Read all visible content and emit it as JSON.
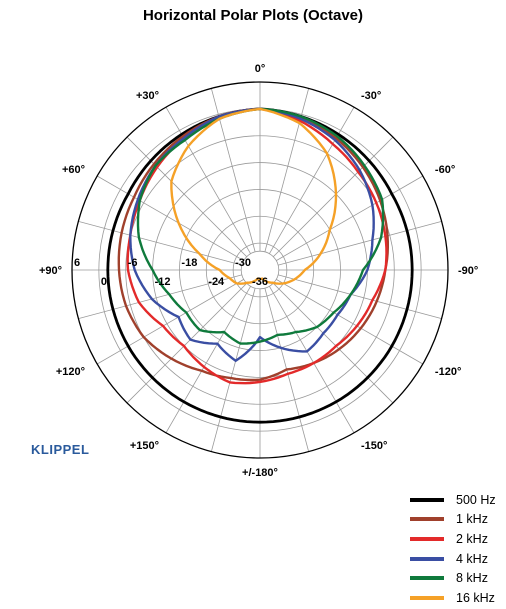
{
  "chart_data": {
    "type": "polar",
    "title": "Horizontal Polar Plots (Octave)",
    "angle_labels": [
      {
        "deg": 0,
        "text": "0°"
      },
      {
        "deg": 30,
        "text": "+30°"
      },
      {
        "deg": -30,
        "text": "-30°"
      },
      {
        "deg": 60,
        "text": "+60°"
      },
      {
        "deg": -60,
        "text": "-60°"
      },
      {
        "deg": 90,
        "text": "+90°"
      },
      {
        "deg": -90,
        "text": "-90°"
      },
      {
        "deg": 120,
        "text": "+120°"
      },
      {
        "deg": -120,
        "text": "-120°"
      },
      {
        "deg": 150,
        "text": "+150°"
      },
      {
        "deg": -150,
        "text": "-150°"
      },
      {
        "deg": 180,
        "text": "+/-180°"
      }
    ],
    "radial_ticks": [
      {
        "db": 6,
        "text": "6"
      },
      {
        "db": 0,
        "text": "0"
      },
      {
        "db": -6,
        "text": "-6"
      },
      {
        "db": -12,
        "text": "-12"
      },
      {
        "db": -18,
        "text": "-18"
      },
      {
        "db": -24,
        "text": "-24"
      },
      {
        "db": -30,
        "text": "-30"
      },
      {
        "db": -36,
        "text": "-36"
      }
    ],
    "r_range": [
      -36,
      6
    ],
    "grid": true,
    "angle_step": 15,
    "legend_position": "bottom-right",
    "series": [
      {
        "name": "500 Hz",
        "color": "#000000",
        "angles": [
          0,
          15,
          30,
          45,
          60,
          75,
          90,
          105,
          120,
          135,
          150,
          165,
          180,
          195,
          210,
          225,
          240,
          255,
          270,
          285,
          300,
          315,
          330,
          345,
          360
        ],
        "values": [
          0,
          -0.5,
          -1,
          -1.5,
          -2,
          -2,
          -2,
          -2,
          -2,
          -2,
          -2,
          -2,
          -2,
          -2,
          -2,
          -2,
          -2,
          -2,
          -2,
          -2,
          -2,
          -1.5,
          -1,
          -0.5,
          0
        ]
      },
      {
        "name": "1 kHz",
        "color": "#a0402c",
        "angles": [
          0,
          15,
          30,
          45,
          60,
          75,
          90,
          105,
          120,
          135,
          150,
          165,
          180,
          195,
          210,
          225,
          240,
          255,
          270,
          285,
          300,
          315,
          330,
          345,
          360
        ],
        "values": [
          0,
          -0.5,
          -1.5,
          -2.5,
          -3.5,
          -4,
          -4.5,
          -5,
          -6,
          -8,
          -10,
          -11,
          -11.5,
          -13,
          -12,
          -11,
          -10,
          -9,
          -8,
          -6.5,
          -5,
          -3.5,
          -2,
          -1,
          0
        ]
      },
      {
        "name": "2 kHz",
        "color": "#e32a2a",
        "angles": [
          0,
          15,
          30,
          45,
          60,
          75,
          90,
          105,
          120,
          135,
          150,
          165,
          180,
          195,
          210,
          225,
          240,
          255,
          270,
          285,
          300,
          315,
          330,
          345,
          360
        ],
        "values": [
          0,
          -0.5,
          -2,
          -3.5,
          -5,
          -6,
          -6.5,
          -8,
          -11,
          -12,
          -11,
          -10,
          -11,
          -12,
          -12,
          -12,
          -11,
          -10,
          -8,
          -7,
          -6,
          -5,
          -3.5,
          -1.5,
          0
        ]
      },
      {
        "name": "4 kHz",
        "color": "#3a4ea3",
        "angles": [
          0,
          15,
          30,
          45,
          60,
          75,
          90,
          105,
          120,
          135,
          150,
          165,
          180,
          195,
          210,
          225,
          240,
          255,
          270,
          285,
          300,
          315,
          330,
          345,
          360
        ],
        "values": [
          0,
          -0.5,
          -2,
          -3,
          -4.5,
          -6,
          -8,
          -11,
          -15,
          -14,
          -17,
          -15,
          -21,
          -18,
          -15,
          -16,
          -16,
          -15,
          -12,
          -10,
          -7,
          -4.5,
          -2.5,
          -1,
          0
        ]
      },
      {
        "name": "8 kHz",
        "color": "#0f7a3c",
        "angles": [
          0,
          15,
          30,
          45,
          60,
          75,
          90,
          105,
          120,
          135,
          150,
          165,
          180,
          195,
          210,
          225,
          240,
          255,
          270,
          285,
          300,
          315,
          330,
          345,
          360
        ],
        "values": [
          0,
          -1,
          -2.5,
          -3,
          -5,
          -8,
          -12,
          -15,
          -17,
          -17,
          -20,
          -19,
          -20,
          -21,
          -20,
          -18,
          -17,
          -15,
          -13,
          -8,
          -4.5,
          -3,
          -1.5,
          -0.5,
          0
        ]
      },
      {
        "name": "16 kHz",
        "color": "#f5a127",
        "angles": [
          0,
          15,
          30,
          45,
          60,
          75,
          90,
          105,
          120,
          135,
          150,
          165,
          180,
          195,
          210,
          225,
          240,
          255,
          270,
          285,
          300,
          315,
          330,
          345,
          360
        ],
        "values": [
          0,
          -1,
          -4,
          -8,
          -15,
          -22,
          -27,
          -29,
          -30,
          -32,
          -33,
          -34,
          -34,
          -34,
          -33,
          -32,
          -30,
          -28,
          -26,
          -22,
          -18,
          -12,
          -6,
          -2,
          0
        ]
      }
    ]
  },
  "branding": {
    "logo_text": "KLIPPEL"
  }
}
